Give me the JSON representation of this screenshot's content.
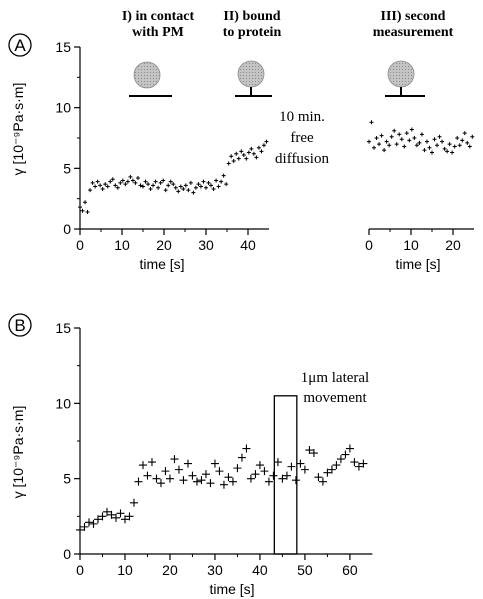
{
  "chart_data": [
    {
      "panel": "A",
      "type": "scatter",
      "ylabel": "γ [10⁻⁹Pa·s·m]",
      "ylim": [
        0,
        15
      ],
      "yticks": [
        "0",
        "5",
        "10",
        "15"
      ],
      "grid": false,
      "annotations": {
        "stage1": [
          "I) in contact",
          "with PM"
        ],
        "stage2": [
          "II) bound",
          "to protein"
        ],
        "stage3": [
          "III) second",
          "measurement"
        ],
        "gap": [
          "10 min.",
          "free",
          "diffusion"
        ]
      },
      "subplots": [
        {
          "xlabel": "time [s]",
          "xlim": [
            0,
            45
          ],
          "xticks": [
            "0",
            "10",
            "20",
            "30",
            "40"
          ],
          "x": [
            0.0,
            0.6,
            1.2,
            1.8,
            2.4,
            3.0,
            3.6,
            4.2,
            4.8,
            5.4,
            6.0,
            6.6,
            7.2,
            7.8,
            8.4,
            9.0,
            9.6,
            10.2,
            10.8,
            11.4,
            12.0,
            12.6,
            13.2,
            13.8,
            14.4,
            15.0,
            15.6,
            16.2,
            16.8,
            17.4,
            18.0,
            18.6,
            19.2,
            19.8,
            20.4,
            21.0,
            21.6,
            22.2,
            22.8,
            23.4,
            24.0,
            24.6,
            25.2,
            25.8,
            26.4,
            27.0,
            27.6,
            28.2,
            28.8,
            29.4,
            30.0,
            30.6,
            31.2,
            31.8,
            32.4,
            33.0,
            33.6,
            34.2,
            34.8,
            35.4,
            36.0,
            36.6,
            37.2,
            37.8,
            38.4,
            39.0,
            39.6,
            40.2,
            40.8,
            41.4,
            42.0,
            42.6,
            43.2,
            43.8,
            44.4
          ],
          "y": [
            1.8,
            1.5,
            2.2,
            1.4,
            3.2,
            3.8,
            3.5,
            3.9,
            3.6,
            3.3,
            3.7,
            3.5,
            3.9,
            4.1,
            3.6,
            3.4,
            3.8,
            4.0,
            3.7,
            3.9,
            4.3,
            4.0,
            3.8,
            4.2,
            3.6,
            3.5,
            3.9,
            3.7,
            3.3,
            3.6,
            3.9,
            3.4,
            3.8,
            4.0,
            3.2,
            3.6,
            3.9,
            3.7,
            3.4,
            3.1,
            3.5,
            3.3,
            3.6,
            3.2,
            3.8,
            3.0,
            3.4,
            3.7,
            3.5,
            3.9,
            3.4,
            3.8,
            3.6,
            3.3,
            4.0,
            3.5,
            3.9,
            4.4,
            3.7,
            5.4,
            6.0,
            5.6,
            6.2,
            5.8,
            6.4,
            6.1,
            5.8,
            6.3,
            6.6,
            6.2,
            5.9,
            6.7,
            6.4,
            6.9,
            7.2
          ]
        },
        {
          "xlabel": "time [s]",
          "xlim": [
            0,
            25
          ],
          "xticks": [
            "0",
            "10",
            "20"
          ],
          "x": [
            0.0,
            0.6,
            1.2,
            1.8,
            2.4,
            3.0,
            3.6,
            4.2,
            4.8,
            5.4,
            6.0,
            6.6,
            7.2,
            7.8,
            8.4,
            9.0,
            9.6,
            10.2,
            10.8,
            11.4,
            12.0,
            12.6,
            13.2,
            13.8,
            14.4,
            15.0,
            15.6,
            16.2,
            16.8,
            17.4,
            18.0,
            18.6,
            19.2,
            19.8,
            20.4,
            21.0,
            21.6,
            22.2,
            22.8,
            23.4,
            24.0,
            24.6
          ],
          "y": [
            7.2,
            8.8,
            6.7,
            7.5,
            7.0,
            7.7,
            6.5,
            7.2,
            6.9,
            7.6,
            8.1,
            7.0,
            7.8,
            7.4,
            6.8,
            7.9,
            7.3,
            8.2,
            7.5,
            6.9,
            7.1,
            7.8,
            6.5,
            7.2,
            6.7,
            6.3,
            7.4,
            6.9,
            7.6,
            7.2,
            6.6,
            6.4,
            7.0,
            6.3,
            6.8,
            7.5,
            6.9,
            7.3,
            7.9,
            7.1,
            6.8,
            7.6
          ]
        }
      ]
    },
    {
      "panel": "B",
      "type": "scatter",
      "xlabel": "time [s]",
      "ylabel": "γ [10⁻⁹Pa·s·m]",
      "xlim": [
        0,
        65
      ],
      "ylim": [
        0,
        15
      ],
      "xticks": [
        "0",
        "10",
        "20",
        "30",
        "40",
        "50",
        "60"
      ],
      "yticks": [
        "0",
        "5",
        "10",
        "15"
      ],
      "grid": false,
      "annotation": [
        "1μm lateral",
        "movement"
      ],
      "highlight_x": [
        43.2,
        48.2
      ],
      "highlight_ylim": [
        0,
        10.5
      ],
      "x": [
        0,
        1,
        2,
        3,
        4,
        5,
        6,
        7,
        8,
        9,
        10,
        11,
        12,
        13,
        14,
        15,
        16,
        17,
        18,
        19,
        20,
        21,
        22,
        23,
        24,
        25,
        26,
        27,
        28,
        29,
        30,
        31,
        32,
        33,
        34,
        35,
        36,
        37,
        38,
        39,
        40,
        41,
        42,
        43,
        44,
        45,
        46,
        47,
        48,
        49,
        50,
        51,
        52,
        53,
        54,
        55,
        56,
        57,
        58,
        59,
        60,
        61,
        62,
        63
      ],
      "y": [
        1.6,
        1.8,
        2.1,
        2.0,
        2.3,
        2.5,
        2.8,
        2.6,
        2.4,
        2.7,
        2.3,
        2.5,
        3.4,
        4.8,
        5.9,
        5.2,
        6.1,
        5.0,
        4.7,
        5.5,
        5.0,
        6.3,
        5.6,
        4.9,
        6.0,
        5.2,
        4.8,
        4.9,
        5.3,
        4.7,
        6.0,
        5.5,
        4.6,
        5.1,
        4.8,
        5.7,
        6.4,
        7.0,
        5.0,
        5.3,
        5.9,
        5.5,
        4.8,
        5.2,
        6.1,
        5.0,
        5.2,
        5.8,
        4.9,
        6.0,
        5.6,
        6.9,
        6.7,
        5.1,
        4.8,
        5.4,
        5.6,
        5.9,
        6.3,
        6.6,
        7.0,
        6.1,
        5.8,
        6.0
      ]
    }
  ]
}
